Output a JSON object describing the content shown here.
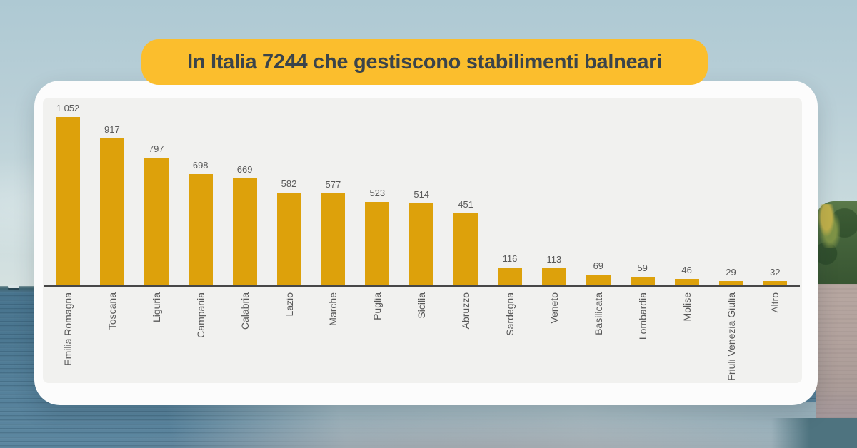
{
  "title_banner": {
    "label": "In Italia 7244 che gestiscono stabilimenti balneari"
  },
  "chart_data": {
    "type": "bar",
    "title": "In Italia 7244 che gestiscono stabilimenti balneari",
    "categories": [
      "Emilia Romagna",
      "Toscana",
      "Liguria",
      "Campania",
      "Calabria",
      "Lazio",
      "Marche",
      "Puglia",
      "Sicilia",
      "Abruzzo",
      "Sardegna",
      "Veneto",
      "Basilicata",
      "Lombardia",
      "Molise",
      "Friuli Venezia Giulia",
      "Altro"
    ],
    "values": [
      1052,
      917,
      797,
      698,
      669,
      582,
      577,
      523,
      514,
      451,
      116,
      113,
      69,
      59,
      46,
      29,
      32
    ],
    "value_labels": [
      "1 052",
      "917",
      "797",
      "698",
      "669",
      "582",
      "577",
      "523",
      "514",
      "451",
      "116",
      "113",
      "69",
      "59",
      "46",
      "29",
      "32"
    ],
    "total": 7244,
    "xlabel": "",
    "ylabel": "",
    "ylim": [
      0,
      1100
    ],
    "grid": false,
    "legend_position": "none",
    "bar_color": "#DDA10B",
    "plot_background": "#F1F1EF",
    "orientation": "vertical",
    "category_label_rotation": -90
  },
  "colors": {
    "bar": "#DDA10B",
    "pill_bg": "#FBBE2D",
    "pill_text": "#3A444B",
    "panel_bg": "#FCFCFC",
    "plot_bg": "#F1F1EF",
    "axis_line": "#474747",
    "value_label": "#595959",
    "category_label": "#595959"
  },
  "scene": {
    "description": "beach photo background with pale sky, sea horizon, small boat, palm trees and sand on the right",
    "sky_color": "#BCD2D8",
    "sea_color": "#4B7791",
    "sand_color": "#B2A29D",
    "vegetation_color": "#44633B"
  }
}
